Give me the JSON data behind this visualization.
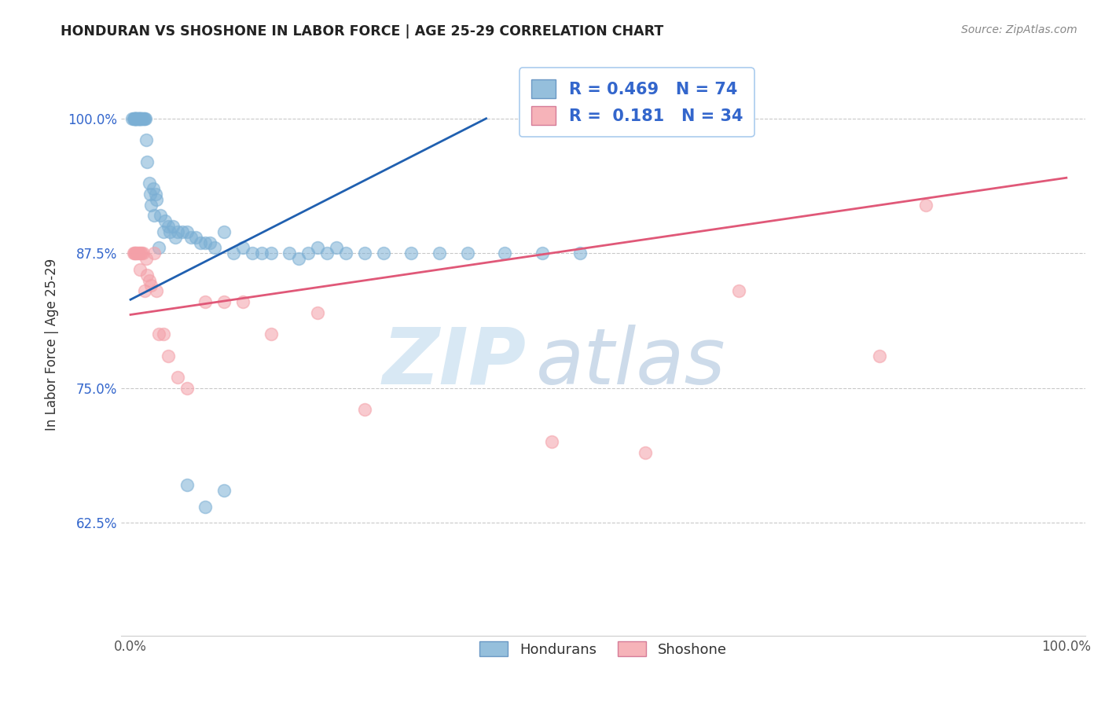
{
  "title": "HONDURAN VS SHOSHONE IN LABOR FORCE | AGE 25-29 CORRELATION CHART",
  "source": "Source: ZipAtlas.com",
  "ylabel": "In Labor Force | Age 25-29",
  "xlim": [
    -0.01,
    1.02
  ],
  "ylim": [
    0.52,
    1.06
  ],
  "yticks": [
    0.625,
    0.75,
    0.875,
    1.0
  ],
  "ytick_labels": [
    "62.5%",
    "75.0%",
    "87.5%",
    "100.0%"
  ],
  "xticks": [
    0.0,
    0.25,
    0.5,
    0.75,
    1.0
  ],
  "xtick_labels": [
    "0.0%",
    "",
    "",
    "",
    "100.0%"
  ],
  "blue_R": 0.469,
  "blue_N": 74,
  "pink_R": 0.181,
  "pink_N": 34,
  "blue_color": "#7BAFD4",
  "pink_color": "#F4A0A8",
  "blue_line_color": "#2060B0",
  "pink_line_color": "#E05878",
  "legend_hondurans": "Hondurans",
  "legend_shoshone": "Shoshone",
  "blue_points_x": [
    0.002,
    0.003,
    0.004,
    0.004,
    0.005,
    0.005,
    0.005,
    0.006,
    0.006,
    0.007,
    0.007,
    0.008,
    0.008,
    0.009,
    0.009,
    0.01,
    0.01,
    0.011,
    0.012,
    0.012,
    0.013,
    0.014,
    0.015,
    0.016,
    0.017,
    0.018,
    0.02,
    0.021,
    0.022,
    0.024,
    0.025,
    0.027,
    0.028,
    0.03,
    0.032,
    0.035,
    0.037,
    0.04,
    0.042,
    0.045,
    0.048,
    0.05,
    0.055,
    0.06,
    0.065,
    0.07,
    0.075,
    0.08,
    0.085,
    0.09,
    0.1,
    0.11,
    0.12,
    0.13,
    0.14,
    0.15,
    0.17,
    0.19,
    0.21,
    0.23,
    0.25,
    0.27,
    0.3,
    0.33,
    0.36,
    0.4,
    0.44,
    0.48,
    0.2,
    0.22,
    0.06,
    0.08,
    0.1,
    0.18
  ],
  "blue_points_y": [
    1.0,
    1.0,
    1.0,
    1.0,
    1.0,
    1.0,
    1.0,
    1.0,
    1.0,
    1.0,
    1.0,
    1.0,
    1.0,
    1.0,
    1.0,
    1.0,
    1.0,
    1.0,
    1.0,
    1.0,
    1.0,
    1.0,
    1.0,
    1.0,
    0.98,
    0.96,
    0.94,
    0.93,
    0.92,
    0.935,
    0.91,
    0.93,
    0.925,
    0.88,
    0.91,
    0.895,
    0.905,
    0.9,
    0.895,
    0.9,
    0.89,
    0.895,
    0.895,
    0.895,
    0.89,
    0.89,
    0.885,
    0.885,
    0.885,
    0.88,
    0.895,
    0.875,
    0.88,
    0.875,
    0.875,
    0.875,
    0.875,
    0.875,
    0.875,
    0.875,
    0.875,
    0.875,
    0.875,
    0.875,
    0.875,
    0.875,
    0.875,
    0.875,
    0.88,
    0.88,
    0.66,
    0.64,
    0.655,
    0.87
  ],
  "pink_points_x": [
    0.003,
    0.004,
    0.005,
    0.006,
    0.007,
    0.008,
    0.009,
    0.01,
    0.011,
    0.012,
    0.013,
    0.015,
    0.017,
    0.018,
    0.02,
    0.022,
    0.025,
    0.028,
    0.03,
    0.035,
    0.04,
    0.05,
    0.06,
    0.08,
    0.1,
    0.12,
    0.15,
    0.2,
    0.25,
    0.45,
    0.55,
    0.65,
    0.8,
    0.85
  ],
  "pink_points_y": [
    0.875,
    0.875,
    0.875,
    0.875,
    0.875,
    0.875,
    0.875,
    0.86,
    0.875,
    0.875,
    0.875,
    0.84,
    0.87,
    0.855,
    0.85,
    0.845,
    0.875,
    0.84,
    0.8,
    0.8,
    0.78,
    0.76,
    0.75,
    0.83,
    0.83,
    0.83,
    0.8,
    0.82,
    0.73,
    0.7,
    0.69,
    0.84,
    0.78,
    0.92
  ],
  "blue_line_x": [
    0.0,
    0.38
  ],
  "blue_line_y_start": 0.832,
  "blue_line_y_end": 1.0,
  "pink_line_x": [
    0.0,
    1.0
  ],
  "pink_line_y_start": 0.818,
  "pink_line_y_end": 0.945
}
